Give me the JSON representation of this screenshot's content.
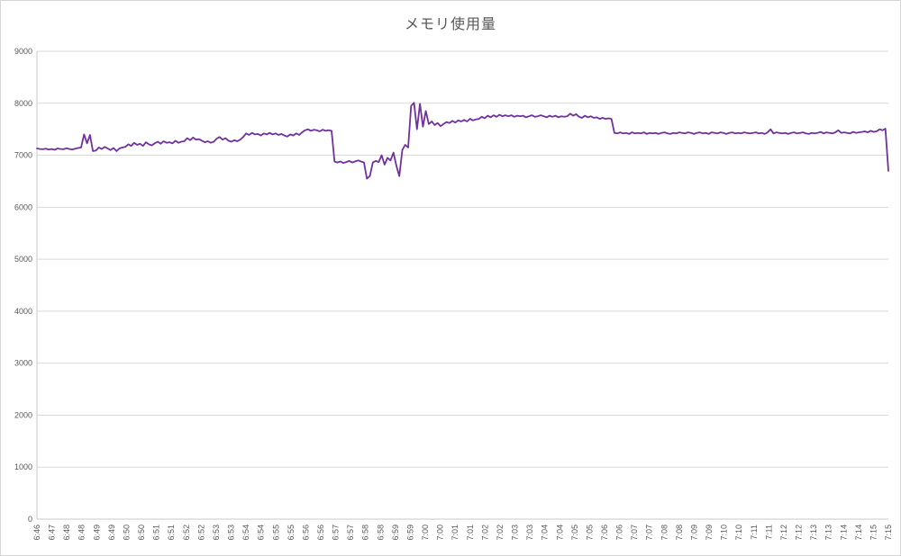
{
  "colors": {
    "line": "#7030A0",
    "grid": "#D9D9D9",
    "axis": "#C9C9C9",
    "tick_text": "#595959",
    "title_text": "#595959",
    "background": "#FFFFFF"
  },
  "chart_data": {
    "type": "line",
    "title": "メモリ使用量",
    "xlabel": "",
    "ylabel": "",
    "ylim": [
      0,
      9000
    ],
    "y_ticks": [
      0,
      1000,
      2000,
      3000,
      4000,
      5000,
      6000,
      7000,
      8000,
      9000
    ],
    "grid": "horizontal",
    "legend": "none",
    "x_tick_labels": [
      "6:46",
      "6:47",
      "6:48",
      "6:48",
      "6:49",
      "6:49",
      "6:50",
      "6:50",
      "6:51",
      "6:51",
      "6:52",
      "6:52",
      "6:53",
      "6:53",
      "6:54",
      "6:54",
      "6:55",
      "6:55",
      "6:56",
      "6:56",
      "6:57",
      "6:57",
      "6:58",
      "6:58",
      "6:59",
      "6:59",
      "7:00",
      "7:00",
      "7:01",
      "7:01",
      "7:02",
      "7:02",
      "7:03",
      "7:03",
      "7:04",
      "7:04",
      "7:05",
      "7:05",
      "7:06",
      "7:06",
      "7:07",
      "7:07",
      "7:08",
      "7:08",
      "7:09",
      "7:09",
      "7:10",
      "7:10",
      "7:11",
      "7:11",
      "7:12",
      "7:12",
      "7:13",
      "7:13",
      "7:14",
      "7:14",
      "7:15",
      "7:15"
    ],
    "series": [
      {
        "name": "メモリ使用量",
        "color": "#7030A0",
        "values": [
          7130,
          7120,
          7115,
          7125,
          7110,
          7120,
          7105,
          7130,
          7120,
          7115,
          7135,
          7120,
          7110,
          7125,
          7140,
          7150,
          7400,
          7230,
          7390,
          7080,
          7090,
          7150,
          7120,
          7160,
          7130,
          7100,
          7140,
          7080,
          7130,
          7150,
          7160,
          7210,
          7180,
          7240,
          7200,
          7220,
          7180,
          7250,
          7210,
          7190,
          7230,
          7260,
          7220,
          7270,
          7240,
          7250,
          7230,
          7280,
          7240,
          7260,
          7270,
          7330,
          7290,
          7340,
          7300,
          7310,
          7280,
          7250,
          7270,
          7240,
          7260,
          7320,
          7350,
          7300,
          7330,
          7280,
          7260,
          7290,
          7270,
          7300,
          7350,
          7420,
          7390,
          7430,
          7400,
          7410,
          7380,
          7420,
          7400,
          7430,
          7400,
          7420,
          7390,
          7410,
          7380,
          7360,
          7400,
          7380,
          7420,
          7390,
          7440,
          7480,
          7500,
          7470,
          7490,
          7480,
          7460,
          7490,
          7470,
          7480,
          7470,
          6880,
          6860,
          6880,
          6850,
          6870,
          6890,
          6860,
          6880,
          6900,
          6880,
          6860,
          6550,
          6600,
          6860,
          6890,
          6870,
          7000,
          6820,
          6950,
          6900,
          7050,
          6800,
          6600,
          7100,
          7200,
          7150,
          7950,
          8010,
          7500,
          7990,
          7550,
          7850,
          7600,
          7650,
          7580,
          7620,
          7560,
          7600,
          7640,
          7620,
          7660,
          7630,
          7670,
          7650,
          7680,
          7650,
          7700,
          7670,
          7690,
          7700,
          7740,
          7710,
          7760,
          7730,
          7770,
          7740,
          7780,
          7750,
          7770,
          7750,
          7770,
          7740,
          7760,
          7750,
          7760,
          7730,
          7750,
          7770,
          7740,
          7750,
          7770,
          7750,
          7730,
          7760,
          7740,
          7760,
          7730,
          7750,
          7740,
          7750,
          7800,
          7760,
          7790,
          7740,
          7720,
          7760,
          7730,
          7750,
          7720,
          7730,
          7700,
          7720,
          7700,
          7710,
          7700,
          7430,
          7420,
          7440,
          7420,
          7430,
          7410,
          7440,
          7420,
          7430,
          7420,
          7440,
          7410,
          7430,
          7420,
          7430,
          7410,
          7430,
          7440,
          7420,
          7410,
          7430,
          7420,
          7440,
          7430,
          7420,
          7440,
          7430,
          7410,
          7430,
          7440,
          7420,
          7430,
          7410,
          7440,
          7430,
          7420,
          7440,
          7430,
          7410,
          7430,
          7440,
          7420,
          7430,
          7420,
          7440,
          7430,
          7420,
          7430,
          7440,
          7420,
          7430,
          7410,
          7440,
          7500,
          7420,
          7440,
          7430,
          7420,
          7430,
          7410,
          7430,
          7440,
          7420,
          7430,
          7440,
          7420,
          7410,
          7430,
          7420,
          7430,
          7450,
          7420,
          7440,
          7430,
          7420,
          7440,
          7480,
          7430,
          7440,
          7430,
          7420,
          7450,
          7430,
          7440,
          7450,
          7460,
          7440,
          7470,
          7450,
          7460,
          7500,
          7480,
          7510,
          6700
        ]
      }
    ]
  }
}
